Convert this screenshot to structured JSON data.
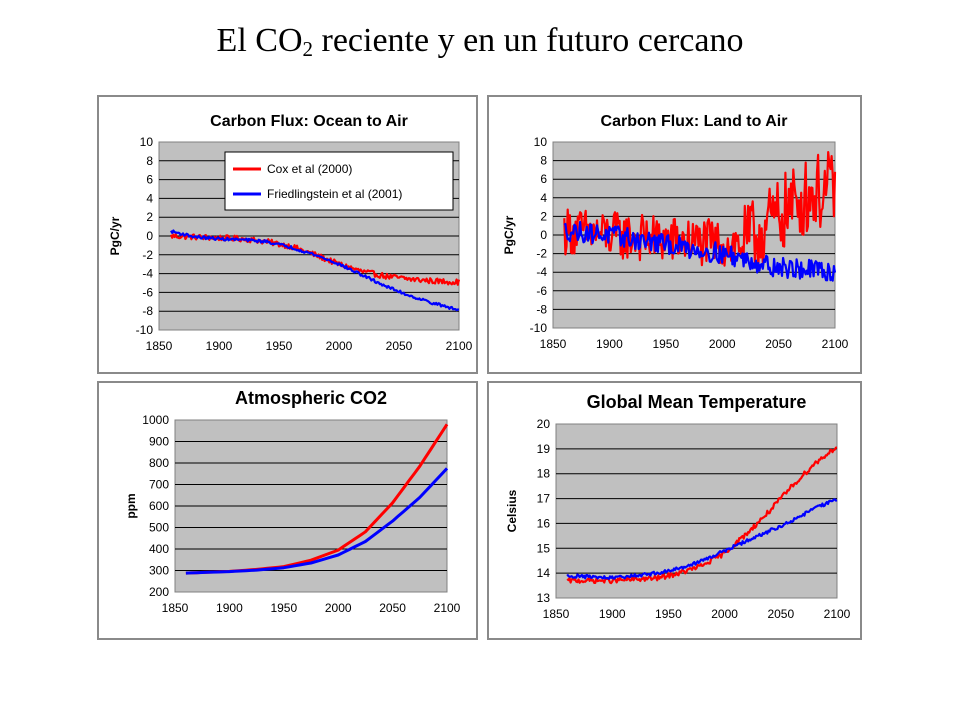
{
  "slide": {
    "title_main": "El CO",
    "title_sub": "2",
    "title_rest": " reciente y en un futuro cercano"
  },
  "colors": {
    "cox": "#ff0000",
    "friedlingstein": "#0000ff",
    "plot_bg": "#c0c0c0",
    "grid": "#000000"
  },
  "chart_data": [
    {
      "id": "ocean",
      "type": "line",
      "title": "Carbon Flux: Ocean to Air",
      "ylabel": "PgC/yr",
      "xlim": [
        1850,
        2100
      ],
      "ylim": [
        -10,
        10
      ],
      "xticks": [
        1850,
        1900,
        1950,
        2000,
        2050,
        2100
      ],
      "yticks": [
        -10,
        -8,
        -6,
        -4,
        -2,
        0,
        2,
        4,
        6,
        8,
        10
      ],
      "grid": true,
      "legend": {
        "position": "top-right",
        "entries": [
          "Cox et al (2000)",
          "Friedlingstein et al (2001)"
        ]
      },
      "series": [
        {
          "name": "Cox et al (2000)",
          "color": "red",
          "noise": 0.3,
          "x": [
            1860,
            1880,
            1900,
            1920,
            1940,
            1960,
            1980,
            2000,
            2020,
            2040,
            2060,
            2080,
            2100
          ],
          "y": [
            0.0,
            -0.1,
            -0.2,
            -0.3,
            -0.6,
            -1.1,
            -2.0,
            -3.0,
            -3.8,
            -4.3,
            -4.6,
            -4.8,
            -4.9
          ]
        },
        {
          "name": "Friedlingstein et al (2001)",
          "color": "blue",
          "noise": 0.15,
          "x": [
            1860,
            1880,
            1900,
            1920,
            1940,
            1960,
            1980,
            2000,
            2020,
            2040,
            2060,
            2080,
            2100
          ],
          "y": [
            0.5,
            -0.1,
            -0.3,
            -0.4,
            -0.6,
            -1.2,
            -2.0,
            -3.0,
            -4.2,
            -5.4,
            -6.4,
            -7.2,
            -7.9
          ]
        }
      ]
    },
    {
      "id": "land",
      "type": "line",
      "title": "Carbon Flux: Land to Air",
      "ylabel": "PgC/yr",
      "xlim": [
        1850,
        2100
      ],
      "ylim": [
        -10,
        10
      ],
      "xticks": [
        1850,
        1900,
        1950,
        2000,
        2050,
        2100
      ],
      "yticks": [
        -10,
        -8,
        -6,
        -4,
        -2,
        0,
        2,
        4,
        6,
        8,
        10
      ],
      "grid": true,
      "series": [
        {
          "name": "Cox et al (2000)",
          "color": "red",
          "noise": 2.6,
          "x": [
            1860,
            1900,
            1950,
            2000,
            2020,
            2040,
            2060,
            2080,
            2100
          ],
          "y": [
            0.5,
            0.0,
            -0.5,
            -1.0,
            -1.0,
            1.0,
            3.0,
            4.5,
            5.0
          ]
        },
        {
          "name": "Friedlingstein et al (2001)",
          "color": "blue",
          "noise": 1.1,
          "x": [
            1860,
            1900,
            1950,
            2000,
            2050,
            2100
          ],
          "y": [
            0.5,
            0.0,
            -1.0,
            -2.0,
            -3.5,
            -4.0
          ]
        }
      ]
    },
    {
      "id": "co2",
      "type": "line",
      "title": "Atmospheric CO2",
      "ylabel": "ppm",
      "xlim": [
        1850,
        2100
      ],
      "ylim": [
        200,
        1000
      ],
      "xticks": [
        1850,
        1900,
        1950,
        2000,
        2050,
        2100
      ],
      "yticks": [
        200,
        300,
        400,
        500,
        600,
        700,
        800,
        900,
        1000
      ],
      "grid": true,
      "series": [
        {
          "name": "Cox et al (2000)",
          "color": "red",
          "noise": 0,
          "x": [
            1860,
            1900,
            1925,
            1950,
            1975,
            2000,
            2025,
            2050,
            2075,
            2100
          ],
          "y": [
            288,
            296,
            305,
            318,
            348,
            395,
            480,
            615,
            785,
            980
          ]
        },
        {
          "name": "Friedlingstein et al (2001)",
          "color": "blue",
          "noise": 0,
          "x": [
            1860,
            1900,
            1925,
            1950,
            1975,
            2000,
            2025,
            2050,
            2075,
            2100
          ],
          "y": [
            288,
            295,
            302,
            313,
            335,
            372,
            435,
            530,
            640,
            775
          ]
        }
      ]
    },
    {
      "id": "temp",
      "type": "line",
      "title": "Global Mean Temperature",
      "ylabel": "Celsius",
      "xlim": [
        1850,
        2100
      ],
      "ylim": [
        13,
        20
      ],
      "xticks": [
        1850,
        1900,
        1950,
        2000,
        2050,
        2100
      ],
      "yticks": [
        13,
        14,
        15,
        16,
        17,
        18,
        19,
        20
      ],
      "grid": true,
      "series": [
        {
          "name": "Cox et al (2000)",
          "color": "red",
          "noise": 0.1,
          "x": [
            1860,
            1900,
            1940,
            1960,
            1980,
            2000,
            2020,
            2040,
            2060,
            2080,
            2100
          ],
          "y": [
            13.7,
            13.7,
            13.8,
            14.0,
            14.3,
            14.8,
            15.6,
            16.5,
            17.5,
            18.4,
            19.1
          ]
        },
        {
          "name": "Friedlingstein et al (2001)",
          "color": "blue",
          "noise": 0.07,
          "x": [
            1860,
            1900,
            1940,
            1960,
            1980,
            2000,
            2020,
            2040,
            2060,
            2080,
            2100
          ],
          "y": [
            13.9,
            13.8,
            14.0,
            14.2,
            14.5,
            14.9,
            15.3,
            15.7,
            16.1,
            16.6,
            17.0
          ]
        }
      ]
    }
  ]
}
